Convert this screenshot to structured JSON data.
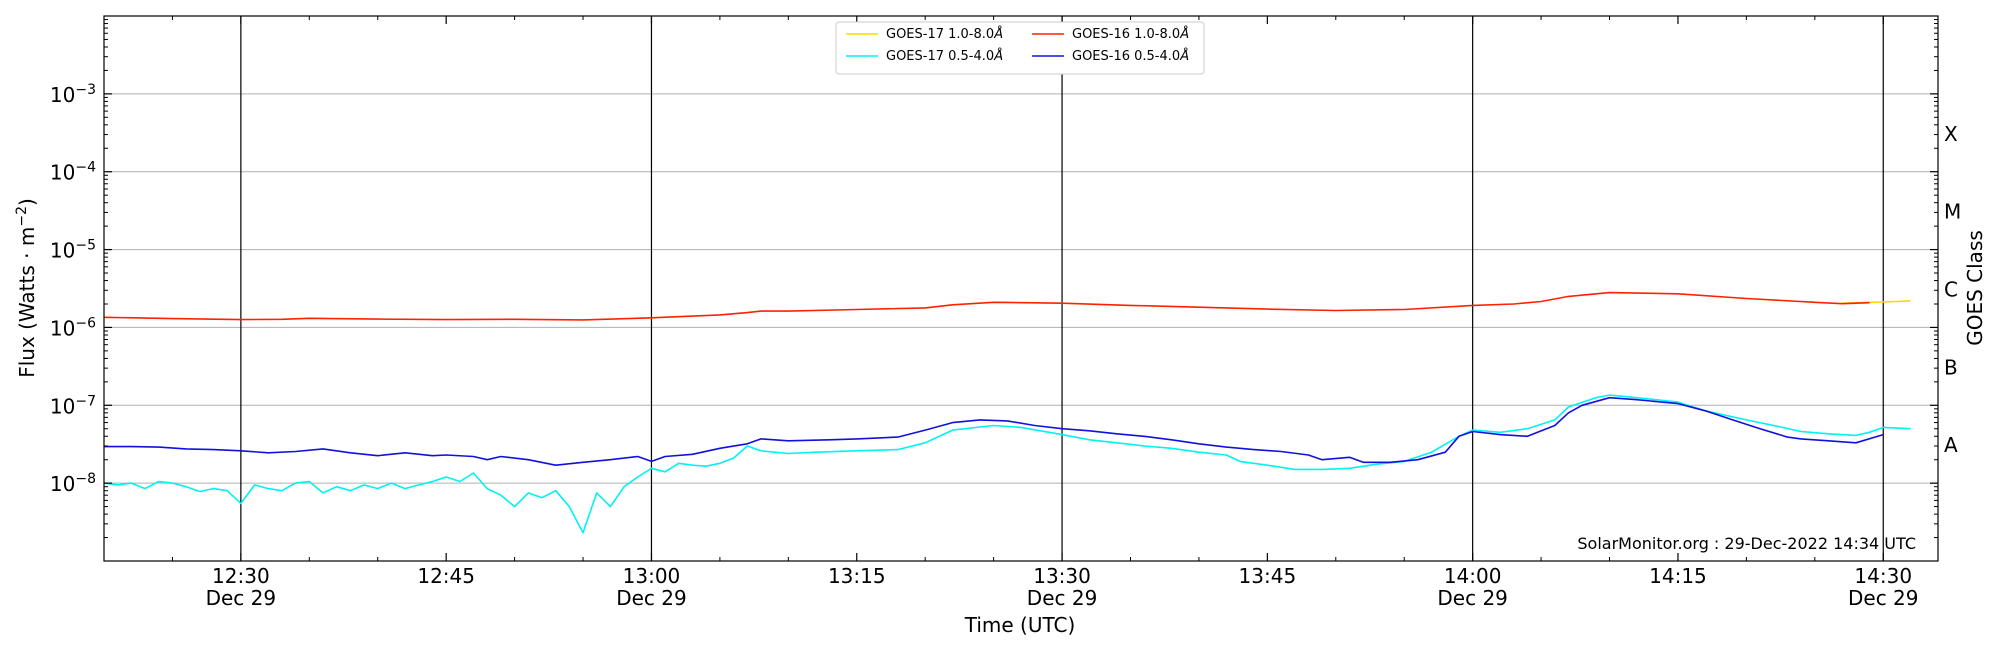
{
  "chart_data": {
    "type": "line",
    "title": "",
    "xlabel": "Time (UTC)",
    "ylabel": "Flux (Watts · m",
    "ylabel_sup": "−2",
    "ylabel_close": ")",
    "right_label": "GOES Class",
    "log_scale_y": true,
    "grid": "horizontal",
    "legend_position": "top-center",
    "ylim": [
      1e-09,
      0.01
    ],
    "x_range": [
      "12:20",
      "14:34"
    ],
    "yticks": [
      {
        "value": 1e-08,
        "base": "10",
        "exp": "−8"
      },
      {
        "value": 1e-07,
        "base": "10",
        "exp": "−7"
      },
      {
        "value": 1e-06,
        "base": "10",
        "exp": "−6"
      },
      {
        "value": 1e-05,
        "base": "10",
        "exp": "−5"
      },
      {
        "value": 0.0001,
        "base": "10",
        "exp": "−4"
      },
      {
        "value": 0.001,
        "base": "10",
        "exp": "−3"
      }
    ],
    "xticks": [
      {
        "time": "12:30",
        "label": "12:30",
        "date": "Dec 29"
      },
      {
        "time": "12:45",
        "label": "12:45",
        "date": ""
      },
      {
        "time": "13:00",
        "label": "13:00",
        "date": "Dec 29"
      },
      {
        "time": "13:15",
        "label": "13:15",
        "date": ""
      },
      {
        "time": "13:30",
        "label": "13:30",
        "date": "Dec 29"
      },
      {
        "time": "13:45",
        "label": "13:45",
        "date": ""
      },
      {
        "time": "14:00",
        "label": "14:00",
        "date": "Dec 29"
      },
      {
        "time": "14:15",
        "label": "14:15",
        "date": ""
      },
      {
        "time": "14:30",
        "label": "14:30",
        "date": "Dec 29"
      }
    ],
    "vlines": [
      "12:30",
      "13:00",
      "13:30",
      "14:00",
      "14:30"
    ],
    "goes_classes": [
      {
        "label": "A",
        "value": 3.16e-08
      },
      {
        "label": "B",
        "value": 3.16e-07
      },
      {
        "label": "C",
        "value": 3.16e-06
      },
      {
        "label": "M",
        "value": 3.16e-05
      },
      {
        "label": "X",
        "value": 0.000316
      }
    ],
    "series": [
      {
        "name": "GOES-17 1.0-8.0",
        "color": "#ffd700",
        "points": [
          [
            "14:27",
            2.05e-06
          ],
          [
            "14:29",
            2.1e-06
          ],
          [
            "14:31",
            2.15e-06
          ],
          [
            "14:32",
            2.2e-06
          ]
        ]
      },
      {
        "name": "GOES-16 1.0-8.0",
        "color": "#ff2200",
        "points": [
          [
            "12:20",
            1.35e-06
          ],
          [
            "12:25",
            1.3e-06
          ],
          [
            "12:30",
            1.26e-06
          ],
          [
            "12:33",
            1.27e-06
          ],
          [
            "12:35",
            1.31e-06
          ],
          [
            "12:40",
            1.28e-06
          ],
          [
            "12:45",
            1.26e-06
          ],
          [
            "12:50",
            1.27e-06
          ],
          [
            "12:55",
            1.25e-06
          ],
          [
            "13:00",
            1.33e-06
          ],
          [
            "13:05",
            1.45e-06
          ],
          [
            "13:07",
            1.55e-06
          ],
          [
            "13:08",
            1.62e-06
          ],
          [
            "13:10",
            1.62e-06
          ],
          [
            "13:15",
            1.7e-06
          ],
          [
            "13:20",
            1.78e-06
          ],
          [
            "13:22",
            1.95e-06
          ],
          [
            "13:25",
            2.1e-06
          ],
          [
            "13:30",
            2.05e-06
          ],
          [
            "13:35",
            1.92e-06
          ],
          [
            "13:40",
            1.82e-06
          ],
          [
            "13:45",
            1.72e-06
          ],
          [
            "13:50",
            1.65e-06
          ],
          [
            "13:55",
            1.7e-06
          ],
          [
            "14:00",
            1.92e-06
          ],
          [
            "14:03",
            2e-06
          ],
          [
            "14:05",
            2.15e-06
          ],
          [
            "14:07",
            2.5e-06
          ],
          [
            "14:10",
            2.8e-06
          ],
          [
            "14:15",
            2.7e-06
          ],
          [
            "14:20",
            2.35e-06
          ],
          [
            "14:25",
            2.1e-06
          ],
          [
            "14:27",
            2.02e-06
          ],
          [
            "14:29",
            2.08e-06
          ]
        ]
      },
      {
        "name": "GOES-17 0.5-4.0",
        "color": "#00f2f2",
        "points": [
          [
            "12:20",
            1e-08
          ],
          [
            "12:21",
            9.5e-09
          ],
          [
            "12:22",
            1e-08
          ],
          [
            "12:23",
            8.5e-09
          ],
          [
            "12:24",
            1.05e-08
          ],
          [
            "12:25",
            1e-08
          ],
          [
            "12:26",
            9e-09
          ],
          [
            "12:27",
            7.8e-09
          ],
          [
            "12:28",
            8.5e-09
          ],
          [
            "12:29",
            8e-09
          ],
          [
            "12:30",
            5.5e-09
          ],
          [
            "12:31",
            9.5e-09
          ],
          [
            "12:32",
            8.5e-09
          ],
          [
            "12:33",
            8e-09
          ],
          [
            "12:34",
            1e-08
          ],
          [
            "12:35",
            1.05e-08
          ],
          [
            "12:36",
            7.5e-09
          ],
          [
            "12:37",
            9e-09
          ],
          [
            "12:38",
            8e-09
          ],
          [
            "12:39",
            9.5e-09
          ],
          [
            "12:40",
            8.5e-09
          ],
          [
            "12:41",
            1e-08
          ],
          [
            "12:42",
            8.5e-09
          ],
          [
            "12:43",
            9.5e-09
          ],
          [
            "12:44",
            1.05e-08
          ],
          [
            "12:45",
            1.2e-08
          ],
          [
            "12:46",
            1.05e-08
          ],
          [
            "12:47",
            1.35e-08
          ],
          [
            "12:48",
            8.5e-09
          ],
          [
            "12:49",
            7e-09
          ],
          [
            "12:50",
            5e-09
          ],
          [
            "12:51",
            7.5e-09
          ],
          [
            "12:52",
            6.5e-09
          ],
          [
            "12:53",
            8e-09
          ],
          [
            "12:54",
            5e-09
          ],
          [
            "12:55",
            2.3e-09
          ],
          [
            "12:56",
            7.5e-09
          ],
          [
            "12:57",
            5e-09
          ],
          [
            "12:58",
            9e-09
          ],
          [
            "12:59",
            1.2e-08
          ],
          [
            "13:00",
            1.55e-08
          ],
          [
            "13:01",
            1.4e-08
          ],
          [
            "13:02",
            1.8e-08
          ],
          [
            "13:03",
            1.7e-08
          ],
          [
            "13:04",
            1.65e-08
          ],
          [
            "13:05",
            1.8e-08
          ],
          [
            "13:06",
            2.1e-08
          ],
          [
            "13:07",
            3e-08
          ],
          [
            "13:08",
            2.6e-08
          ],
          [
            "13:10",
            2.4e-08
          ],
          [
            "13:12",
            2.5e-08
          ],
          [
            "13:15",
            2.6e-08
          ],
          [
            "13:18",
            2.7e-08
          ],
          [
            "13:20",
            3.3e-08
          ],
          [
            "13:22",
            4.8e-08
          ],
          [
            "13:25",
            5.5e-08
          ],
          [
            "13:27",
            5.2e-08
          ],
          [
            "13:30",
            4.2e-08
          ],
          [
            "13:32",
            3.6e-08
          ],
          [
            "13:34",
            3.3e-08
          ],
          [
            "13:36",
            3e-08
          ],
          [
            "13:38",
            2.8e-08
          ],
          [
            "13:40",
            2.5e-08
          ],
          [
            "13:42",
            2.3e-08
          ],
          [
            "13:43",
            1.9e-08
          ],
          [
            "13:45",
            1.7e-08
          ],
          [
            "13:47",
            1.5e-08
          ],
          [
            "13:49",
            1.5e-08
          ],
          [
            "13:51",
            1.55e-08
          ],
          [
            "13:53",
            1.75e-08
          ],
          [
            "13:55",
            1.9e-08
          ],
          [
            "13:57",
            2.5e-08
          ],
          [
            "13:59",
            4e-08
          ],
          [
            "14:00",
            4.8e-08
          ],
          [
            "14:02",
            4.5e-08
          ],
          [
            "14:04",
            5e-08
          ],
          [
            "14:06",
            6.5e-08
          ],
          [
            "14:07",
            9.5e-08
          ],
          [
            "14:09",
            1.25e-07
          ],
          [
            "14:10",
            1.35e-07
          ],
          [
            "14:12",
            1.25e-07
          ],
          [
            "14:15",
            1.1e-07
          ],
          [
            "14:17",
            8.5e-08
          ],
          [
            "14:20",
            6.5e-08
          ],
          [
            "14:22",
            5.5e-08
          ],
          [
            "14:24",
            4.6e-08
          ],
          [
            "14:26",
            4.3e-08
          ],
          [
            "14:28",
            4.1e-08
          ],
          [
            "14:29",
            4.5e-08
          ],
          [
            "14:30",
            5.2e-08
          ],
          [
            "14:32",
            5e-08
          ]
        ]
      },
      {
        "name": "GOES-16 0.5-4.0",
        "color": "#1111dd",
        "points": [
          [
            "12:20",
            2.95e-08
          ],
          [
            "12:22",
            2.95e-08
          ],
          [
            "12:24",
            2.9e-08
          ],
          [
            "12:26",
            2.75e-08
          ],
          [
            "12:28",
            2.7e-08
          ],
          [
            "12:30",
            2.6e-08
          ],
          [
            "12:32",
            2.45e-08
          ],
          [
            "12:34",
            2.55e-08
          ],
          [
            "12:36",
            2.75e-08
          ],
          [
            "12:38",
            2.45e-08
          ],
          [
            "12:40",
            2.25e-08
          ],
          [
            "12:42",
            2.45e-08
          ],
          [
            "12:44",
            2.25e-08
          ],
          [
            "12:45",
            2.3e-08
          ],
          [
            "12:47",
            2.2e-08
          ],
          [
            "12:48",
            2e-08
          ],
          [
            "12:49",
            2.2e-08
          ],
          [
            "12:51",
            2e-08
          ],
          [
            "12:53",
            1.7e-08
          ],
          [
            "12:55",
            1.85e-08
          ],
          [
            "12:57",
            2e-08
          ],
          [
            "12:59",
            2.2e-08
          ],
          [
            "13:00",
            1.9e-08
          ],
          [
            "13:01",
            2.2e-08
          ],
          [
            "13:03",
            2.35e-08
          ],
          [
            "13:05",
            2.8e-08
          ],
          [
            "13:07",
            3.2e-08
          ],
          [
            "13:08",
            3.7e-08
          ],
          [
            "13:10",
            3.5e-08
          ],
          [
            "13:13",
            3.6e-08
          ],
          [
            "13:15",
            3.7e-08
          ],
          [
            "13:18",
            3.9e-08
          ],
          [
            "13:20",
            4.8e-08
          ],
          [
            "13:22",
            6e-08
          ],
          [
            "13:24",
            6.5e-08
          ],
          [
            "13:26",
            6.3e-08
          ],
          [
            "13:28",
            5.5e-08
          ],
          [
            "13:30",
            5e-08
          ],
          [
            "13:32",
            4.7e-08
          ],
          [
            "13:34",
            4.3e-08
          ],
          [
            "13:36",
            4e-08
          ],
          [
            "13:38",
            3.6e-08
          ],
          [
            "13:40",
            3.2e-08
          ],
          [
            "13:42",
            2.9e-08
          ],
          [
            "13:44",
            2.7e-08
          ],
          [
            "13:46",
            2.55e-08
          ],
          [
            "13:48",
            2.3e-08
          ],
          [
            "13:49",
            2e-08
          ],
          [
            "13:51",
            2.15e-08
          ],
          [
            "13:52",
            1.85e-08
          ],
          [
            "13:54",
            1.85e-08
          ],
          [
            "13:56",
            2e-08
          ],
          [
            "13:58",
            2.5e-08
          ],
          [
            "13:59",
            4e-08
          ],
          [
            "14:00",
            4.6e-08
          ],
          [
            "14:02",
            4.2e-08
          ],
          [
            "14:04",
            4e-08
          ],
          [
            "14:06",
            5.5e-08
          ],
          [
            "14:07",
            8e-08
          ],
          [
            "14:08",
            1e-07
          ],
          [
            "14:10",
            1.25e-07
          ],
          [
            "14:12",
            1.18e-07
          ],
          [
            "14:15",
            1.05e-07
          ],
          [
            "14:17",
            8.5e-08
          ],
          [
            "14:19",
            6.5e-08
          ],
          [
            "14:21",
            5e-08
          ],
          [
            "14:23",
            3.9e-08
          ],
          [
            "14:24",
            3.7e-08
          ],
          [
            "14:26",
            3.5e-08
          ],
          [
            "14:28",
            3.3e-08
          ],
          [
            "14:30",
            4.2e-08
          ]
        ]
      }
    ],
    "legend": [
      {
        "series": 0,
        "text": "GOES-17 1.0-8.0",
        "unit": "Å"
      },
      {
        "series": 2,
        "text": "GOES-17 0.5-4.0",
        "unit": "Å"
      },
      {
        "series": 1,
        "text": "GOES-16 1.0-8.0",
        "unit": "Å"
      },
      {
        "series": 3,
        "text": "GOES-16 0.5-4.0",
        "unit": "Å"
      }
    ],
    "watermark": "SolarMonitor.org : 29-Dec-2022 14:34 UTC"
  }
}
